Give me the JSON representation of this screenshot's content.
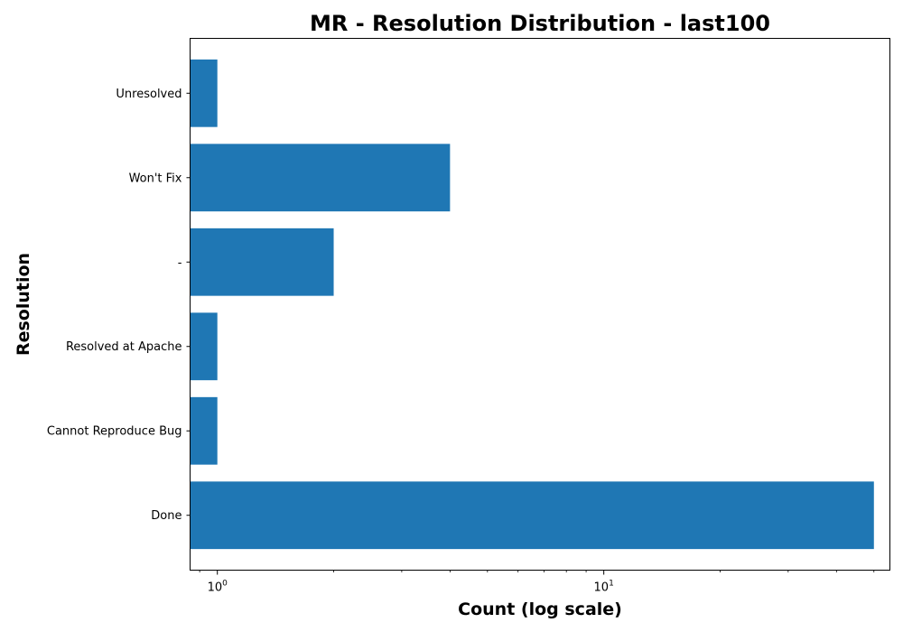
{
  "chart_data": {
    "type": "bar",
    "orientation": "horizontal",
    "title": "MR - Resolution Distribution - last100",
    "xlabel": "Count (log scale)",
    "ylabel": "Resolution",
    "x_scale": "log",
    "xlim": [
      0.85,
      55
    ],
    "categories": [
      "Done",
      "Cannot Reproduce Bug",
      "Resolved at Apache",
      "-",
      "Won't Fix",
      "Unresolved"
    ],
    "values": [
      50,
      1,
      1,
      2,
      4,
      1
    ],
    "x_ticks": [
      {
        "base": "10",
        "exp": "0",
        "value": 1
      },
      {
        "base": "10",
        "exp": "1",
        "value": 10
      }
    ],
    "bar_color": "#1f77b4",
    "grid": false,
    "legend": "none"
  }
}
